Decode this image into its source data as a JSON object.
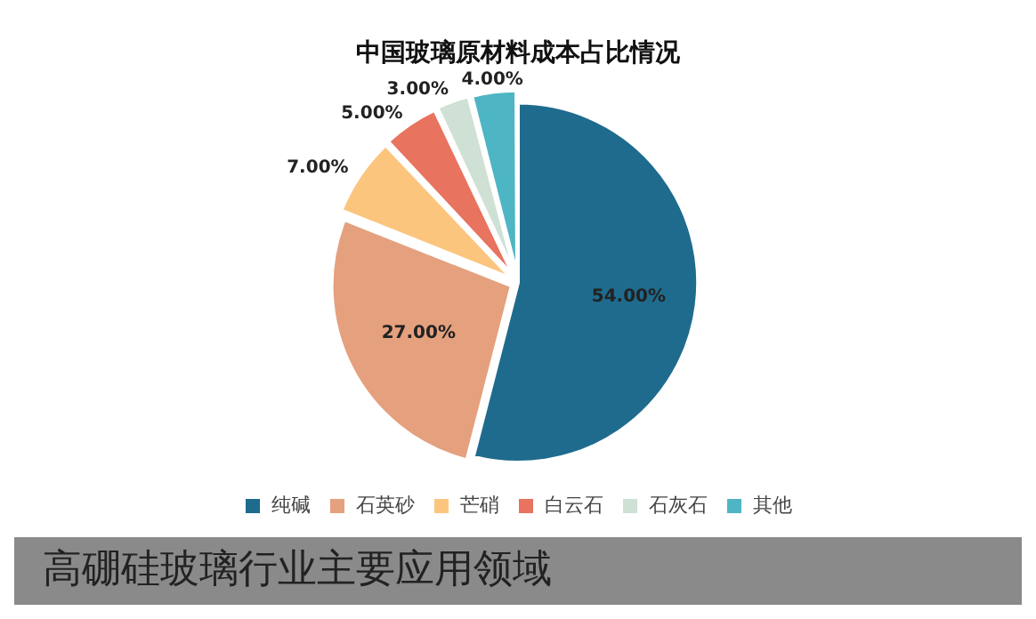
{
  "chart_data": {
    "type": "pie",
    "title": "中国玻璃原材料成本占比情况",
    "categories": [
      "纯碱",
      "石英砂",
      "芒硝",
      "白云石",
      "石灰石",
      "其他"
    ],
    "values": [
      54,
      27,
      7,
      5,
      3,
      4
    ],
    "colors": [
      "#1f6b8e",
      "#e5a07e",
      "#fcc57e",
      "#e8735f",
      "#cfe0d5",
      "#4db5c4"
    ],
    "value_labels": [
      "54.00%",
      "27.00%",
      "7.00%",
      "5.00%",
      "3.00%",
      "4.00%"
    ],
    "legend": "bottom",
    "annotations": [
      "高硼硅玻璃行业主要应用领域"
    ]
  }
}
